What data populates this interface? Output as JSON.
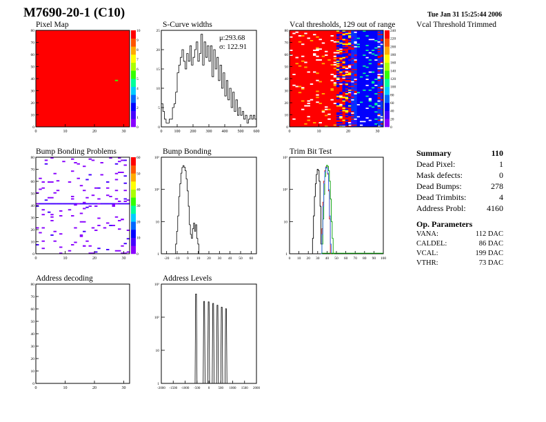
{
  "header": {
    "title": "M7690-20-1 (C10)",
    "timestamp": "Tue Jan 31 15:25:44 2006"
  },
  "panel_titles": {
    "pixel_map": "Pixel Map",
    "scurve": "S-Curve widths",
    "vcal": "Vcal thresholds, 129 out of range",
    "vcal_trimmed": "Vcal Threshold Trimmed",
    "bump_problems": "Bump Bonding Problems",
    "bump_bonding": "Bump Bonding",
    "trim_bit": "Trim Bit Test",
    "address_decoding": "Address decoding",
    "address_levels": "Address Levels"
  },
  "summary": {
    "title": "Summary",
    "total": "110",
    "rows": [
      {
        "label": "Dead Pixel:",
        "value": "1"
      },
      {
        "label": "Mask defects:",
        "value": "0"
      },
      {
        "label": "Dead Bumps:",
        "value": "278"
      },
      {
        "label": "Dead Trimbits:",
        "value": "4"
      },
      {
        "label": "Address Probl:",
        "value": "4160"
      }
    ],
    "op_title": "Op. Parameters",
    "op_rows": [
      {
        "label": "VANA:",
        "value": "112 DAC"
      },
      {
        "label": "CALDEL:",
        "value": "86 DAC"
      },
      {
        "label": "VCAL:",
        "value": "199 DAC"
      },
      {
        "label": "VTHR:",
        "value": "73 DAC"
      }
    ]
  },
  "chart_data": [
    {
      "id": "pixel-map",
      "type": "heatmap",
      "title": "Pixel Map",
      "xlim": [
        0,
        32
      ],
      "ylim": [
        0,
        80
      ],
      "x_ticks": [
        "0",
        "10",
        "20",
        "30"
      ],
      "y_ticks": [
        "0",
        "10",
        "20",
        "30",
        "40",
        "50",
        "60",
        "70",
        "80"
      ],
      "z_ticks": [
        "0",
        "1",
        "2",
        "3",
        "4",
        "5",
        "6",
        "7",
        "8",
        "9",
        "10"
      ],
      "fill_value": 10,
      "special_pixels": [
        {
          "x": 27,
          "y": 38,
          "z": 5
        }
      ]
    },
    {
      "id": "scurve-widths",
      "type": "bar",
      "title": "S-Curve widths",
      "xlim": [
        0,
        600
      ],
      "ylim": [
        0,
        25
      ],
      "x_ticks": [
        "0",
        "100",
        "200",
        "300",
        "400",
        "500",
        "600"
      ],
      "y_ticks": [
        "0",
        "5",
        "10",
        "15",
        "20",
        "25"
      ],
      "stats": {
        "mean_label": "μ:",
        "mean": "293.68",
        "sigma_label": "σ:",
        "sigma": "122.91"
      },
      "bin_width": 10,
      "bin_start": [
        0,
        10,
        20,
        30,
        40,
        50,
        60,
        70,
        80,
        90,
        100,
        110,
        120,
        130,
        140,
        150,
        160,
        170,
        180,
        190,
        200,
        210,
        220,
        230,
        240,
        250,
        260,
        270,
        280,
        290,
        300,
        310,
        320,
        330,
        340,
        350,
        360,
        370,
        380,
        390,
        400,
        410,
        420,
        430,
        440,
        450,
        460,
        470,
        480,
        490,
        500,
        510,
        520,
        530,
        540,
        550,
        560,
        570,
        580,
        590
      ],
      "values": [
        6,
        4,
        2,
        1,
        1,
        2,
        2,
        5,
        6,
        9,
        14,
        16,
        18,
        20,
        17,
        15,
        19,
        17,
        21,
        16,
        18,
        20,
        22,
        17,
        19,
        24,
        16,
        22,
        18,
        21,
        17,
        21,
        13,
        20,
        15,
        18,
        12,
        16,
        10,
        14,
        8,
        12,
        7,
        10,
        5,
        9,
        4,
        7,
        3,
        5,
        3,
        4,
        2,
        3,
        1,
        2,
        3,
        2,
        3,
        2
      ]
    },
    {
      "id": "vcal-thresholds",
      "type": "heatmap",
      "title": "Vcal thresholds, 129 out of range",
      "xlim": [
        0,
        32
      ],
      "ylim": [
        0,
        80
      ],
      "x_ticks": [
        "0",
        "10",
        "20",
        "30"
      ],
      "y_ticks": [
        "0",
        "10",
        "20",
        "30",
        "40",
        "50",
        "60",
        "70",
        "80"
      ],
      "z_ticks": [
        "0",
        "20",
        "40",
        "60",
        "80",
        "100",
        "120",
        "140",
        "160",
        "180",
        "200",
        "220",
        "240"
      ],
      "column_center": 26,
      "column_width": 6
    },
    {
      "id": "bump-problems",
      "type": "heatmap",
      "title": "Bump Bonding Problems",
      "xlim": [
        0,
        32
      ],
      "ylim": [
        0,
        80
      ],
      "x_ticks": [
        "0",
        "10",
        "20",
        "30"
      ],
      "y_ticks": [
        "0",
        "10",
        "20",
        "30",
        "40",
        "50",
        "60",
        "70",
        "80"
      ],
      "z_ticks": [
        "0",
        "10",
        "20",
        "30",
        "40",
        "50",
        "60"
      ],
      "dead_row": 41,
      "scattered_count": 140
    },
    {
      "id": "bump-bonding",
      "type": "line",
      "title": "Bump Bonding",
      "xlim": [
        -25,
        65
      ],
      "y_scale": "log",
      "ylim": [
        1,
        1000
      ],
      "x_ticks": [
        "-20",
        "-10",
        "0",
        "10",
        "20",
        "30",
        "40",
        "50",
        "60"
      ],
      "y_ticks": [
        "1",
        "10",
        "10²",
        "10³"
      ],
      "x": [
        -12,
        -11,
        -10,
        -9,
        -8,
        -7,
        -6,
        -5,
        -4,
        -3,
        -2,
        -1,
        0,
        1,
        2,
        3,
        4,
        5,
        6,
        7,
        8,
        9,
        10,
        11,
        62
      ],
      "values": [
        1,
        2,
        5,
        15,
        60,
        150,
        320,
        480,
        550,
        490,
        380,
        210,
        90,
        30,
        8,
        4,
        3,
        6,
        9,
        5,
        8,
        3,
        2,
        1,
        1
      ]
    },
    {
      "id": "trim-bit-test",
      "type": "line",
      "title": "Trim Bit Test",
      "xlim": [
        0,
        100
      ],
      "y_scale": "log",
      "ylim": [
        1,
        1000
      ],
      "x_ticks": [
        "0",
        "10",
        "20",
        "30",
        "40",
        "50",
        "60",
        "70",
        "80",
        "90",
        "100"
      ],
      "y_ticks": [
        "1",
        "10",
        "10²",
        "10³"
      ],
      "series": [
        {
          "color": "#000000",
          "x": [
            24,
            25,
            26,
            27,
            28,
            29,
            30,
            31,
            32,
            33,
            34
          ],
          "values": [
            1,
            3,
            15,
            60,
            150,
            290,
            420,
            390,
            180,
            30,
            2
          ]
        },
        {
          "color": "#cc0000",
          "x": [
            34,
            35,
            36,
            37,
            38,
            39,
            40,
            41,
            42,
            43,
            44
          ],
          "values": [
            1,
            6,
            40,
            180,
            380,
            500,
            480,
            300,
            90,
            12,
            1
          ]
        },
        {
          "color": "#00a000",
          "x": [
            35,
            36,
            37,
            38,
            39,
            40,
            41,
            42,
            43,
            44,
            45,
            46,
            47
          ],
          "values": [
            2,
            12,
            70,
            250,
            460,
            560,
            520,
            380,
            180,
            50,
            10,
            3,
            1
          ]
        },
        {
          "color": "#3070ff",
          "x": [
            34,
            35,
            36,
            37,
            38,
            39,
            40,
            41,
            42,
            43,
            44
          ],
          "values": [
            1,
            4,
            30,
            150,
            350,
            480,
            470,
            320,
            100,
            15,
            2
          ]
        }
      ]
    },
    {
      "id": "address-decoding",
      "type": "heatmap",
      "title": "Address decoding",
      "xlim": [
        0,
        32
      ],
      "ylim": [
        0,
        80
      ],
      "x_ticks": [
        "0",
        "10",
        "20",
        "30"
      ],
      "y_ticks": [
        "0",
        "10",
        "20",
        "30",
        "40",
        "50",
        "60",
        "70",
        "80"
      ]
    },
    {
      "id": "address-levels",
      "type": "line",
      "title": "Address Levels",
      "xlim": [
        -2000,
        2000
      ],
      "y_scale": "log",
      "ylim": [
        1,
        1000
      ],
      "x_ticks": [
        "-2000",
        "-1500",
        "-1000",
        "-500",
        "0",
        "500",
        "1000",
        "1500",
        "2000"
      ],
      "y_ticks": [
        "1",
        "10",
        "10²",
        "10³"
      ],
      "peaks": [
        {
          "x": -540,
          "value": 500
        },
        {
          "x": -200,
          "value": 300
        },
        {
          "x": -10,
          "value": 290
        },
        {
          "x": 180,
          "value": 260
        },
        {
          "x": 360,
          "value": 230
        },
        {
          "x": 540,
          "value": 200
        },
        {
          "x": 720,
          "value": 180
        }
      ]
    }
  ]
}
